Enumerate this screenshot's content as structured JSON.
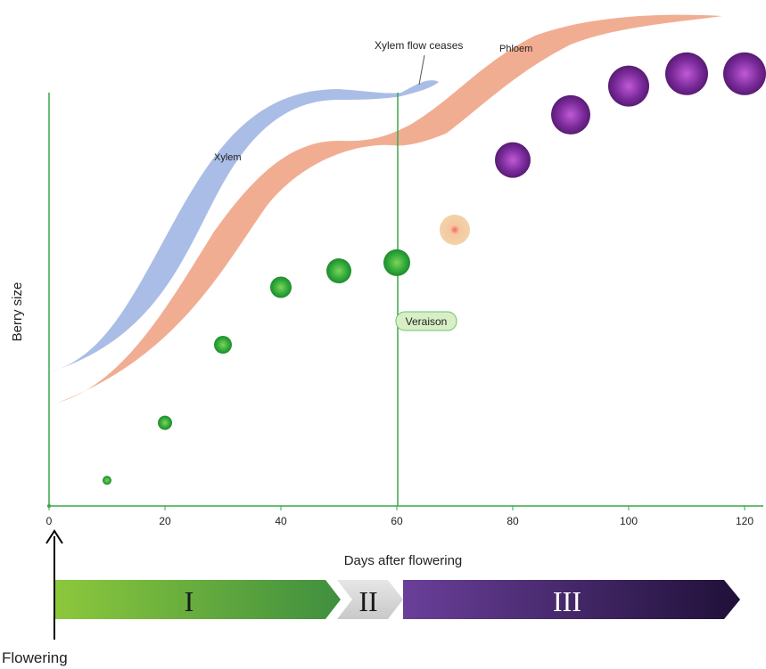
{
  "chart_data": {
    "type": "scatter",
    "xlabel": "Days after flowering",
    "ylabel": "Berry size",
    "xlim": [
      0,
      122
    ],
    "x_ticks": [
      0,
      20,
      40,
      60,
      80,
      100,
      120
    ],
    "y_ticks_shown": false,
    "grid": false,
    "series": [
      {
        "name": "",
        "points": [
          {
            "x": 10,
            "y": 0.03,
            "color": "#2aa33a"
          },
          {
            "x": 20,
            "y": 0.17,
            "color": "#2aa33a"
          },
          {
            "x": 30,
            "y": 0.36,
            "color": "#2aa33a"
          },
          {
            "x": 40,
            "y": 0.5,
            "color": "#2aa33a"
          },
          {
            "x": 50,
            "y": 0.54,
            "color": "#2aa33a"
          },
          {
            "x": 60,
            "y": 0.56,
            "color": "#2aa33a"
          },
          {
            "x": 70,
            "y": 0.64,
            "color": "#f3d7a8"
          },
          {
            "x": 80,
            "y": 0.81,
            "color": "#7a2a9a"
          },
          {
            "x": 90,
            "y": 0.92,
            "color": "#7a2a9a"
          },
          {
            "x": 100,
            "y": 0.99,
            "color": "#7a2a9a"
          },
          {
            "x": 110,
            "y": 1.02,
            "color": "#7a2a9a"
          },
          {
            "x": 120,
            "y": 1.02,
            "color": "#7a2a9a"
          }
        ]
      }
    ],
    "bands": [
      {
        "name": "Xylem",
        "color": "#a9bde6"
      },
      {
        "name": "Phloem",
        "color": "#f1ad92"
      }
    ],
    "markers": [
      {
        "label": "Veraison",
        "x": 60
      },
      {
        "label": "Xylem flow ceases",
        "x": 60
      }
    ]
  },
  "labels": {
    "xylem": "Xylem",
    "phloem": "Phloem",
    "xylem_flow_ceases": "Xylem flow ceases",
    "veraison": "Veraison",
    "flowering": "Flowering"
  },
  "stages": [
    {
      "label": "I",
      "color_start": "#8cc83c",
      "color_end": "#3f8f3f"
    },
    {
      "label": "II",
      "color_start": "#d9d9d9",
      "color_end": "#d9d9d9"
    },
    {
      "label": "III",
      "color_start": "#6a3f9a",
      "color_end": "#1f1038"
    }
  ]
}
